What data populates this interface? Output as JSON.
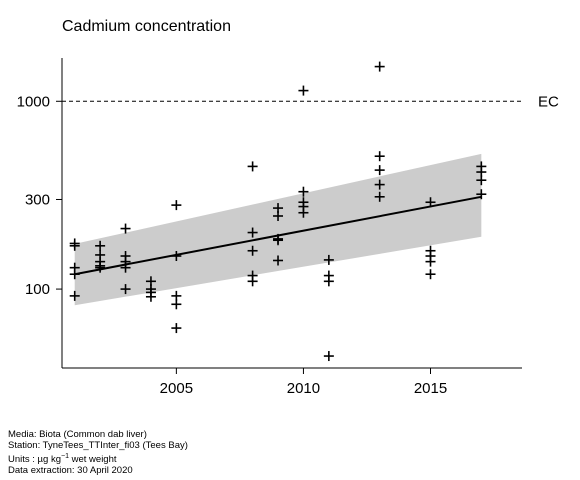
{
  "chart_data": {
    "type": "scatter",
    "title": "Cadmium concentration",
    "xlabel": "",
    "ylabel": "",
    "y_scale": "log",
    "x_range": [
      2000.5,
      2018.6
    ],
    "y_range": [
      38,
      1700
    ],
    "x_ticks": [
      2005,
      2010,
      2015
    ],
    "y_ticks": [
      100,
      300,
      1000
    ],
    "grid": false,
    "reference_line": {
      "value": 1000,
      "label": "EC",
      "style": "dashed"
    },
    "points": [
      {
        "x": 2001,
        "y": 175
      },
      {
        "x": 2001,
        "y": 170
      },
      {
        "x": 2001,
        "y": 130
      },
      {
        "x": 2001,
        "y": 120
      },
      {
        "x": 2001,
        "y": 92
      },
      {
        "x": 2002,
        "y": 170
      },
      {
        "x": 2002,
        "y": 152
      },
      {
        "x": 2002,
        "y": 140
      },
      {
        "x": 2002,
        "y": 133
      },
      {
        "x": 2002,
        "y": 130
      },
      {
        "x": 2003,
        "y": 210
      },
      {
        "x": 2003,
        "y": 150
      },
      {
        "x": 2003,
        "y": 140
      },
      {
        "x": 2003,
        "y": 130
      },
      {
        "x": 2003,
        "y": 100
      },
      {
        "x": 2004,
        "y": 110
      },
      {
        "x": 2004,
        "y": 100
      },
      {
        "x": 2004,
        "y": 96
      },
      {
        "x": 2004,
        "y": 91
      },
      {
        "x": 2005,
        "y": 280
      },
      {
        "x": 2005,
        "y": 150
      },
      {
        "x": 2005,
        "y": 92
      },
      {
        "x": 2005,
        "y": 83
      },
      {
        "x": 2005,
        "y": 62
      },
      {
        "x": 2008,
        "y": 450
      },
      {
        "x": 2008,
        "y": 200
      },
      {
        "x": 2008,
        "y": 160
      },
      {
        "x": 2008,
        "y": 118
      },
      {
        "x": 2008,
        "y": 110
      },
      {
        "x": 2009,
        "y": 270
      },
      {
        "x": 2009,
        "y": 245
      },
      {
        "x": 2009,
        "y": 185
      },
      {
        "x": 2009,
        "y": 182
      },
      {
        "x": 2009,
        "y": 142
      },
      {
        "x": 2010,
        "y": 1140
      },
      {
        "x": 2010,
        "y": 330
      },
      {
        "x": 2010,
        "y": 290
      },
      {
        "x": 2010,
        "y": 275
      },
      {
        "x": 2010,
        "y": 255
      },
      {
        "x": 2011,
        "y": 143
      },
      {
        "x": 2011,
        "y": 118
      },
      {
        "x": 2011,
        "y": 110
      },
      {
        "x": 2011,
        "y": 44
      },
      {
        "x": 2013,
        "y": 1530
      },
      {
        "x": 2013,
        "y": 510
      },
      {
        "x": 2013,
        "y": 430
      },
      {
        "x": 2013,
        "y": 360
      },
      {
        "x": 2013,
        "y": 310
      },
      {
        "x": 2015,
        "y": 290
      },
      {
        "x": 2015,
        "y": 160
      },
      {
        "x": 2015,
        "y": 150
      },
      {
        "x": 2015,
        "y": 140
      },
      {
        "x": 2015,
        "y": 120
      },
      {
        "x": 2017,
        "y": 450
      },
      {
        "x": 2017,
        "y": 420
      },
      {
        "x": 2017,
        "y": 380
      },
      {
        "x": 2017,
        "y": 320
      }
    ],
    "trend": {
      "x": [
        2001,
        2017
      ],
      "y": [
        120,
        310
      ],
      "lower": [
        82,
        190
      ],
      "upper": [
        174,
        525
      ]
    },
    "colors": {
      "points": "#000000",
      "trend": "#000000",
      "band": "#cccccc"
    }
  },
  "footer": {
    "media": "Media: Biota (Common dab liver)",
    "station": "Station: TyneTees_TTInter_fi03 (Tees Bay)",
    "units_prefix": "Units :  µg kg",
    "units_sup": "−1",
    "units_suffix": " wet weight",
    "extraction": "Data extraction: 30 April 2020"
  }
}
